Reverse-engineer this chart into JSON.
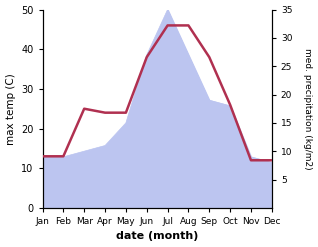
{
  "months": [
    "Jan",
    "Feb",
    "Mar",
    "Apr",
    "May",
    "Jun",
    "Jul",
    "Aug",
    "Sep",
    "Oct",
    "Nov",
    "Dec"
  ],
  "max_temp": [
    13,
    13,
    25,
    24,
    24,
    38,
    46,
    46,
    38,
    26,
    12,
    12
  ],
  "precipitation": [
    9,
    9,
    10,
    11,
    15,
    27,
    35,
    27,
    19,
    18,
    9,
    8
  ],
  "temp_color": "#b03050",
  "precip_fill_color": "#bcc5f0",
  "temp_ylim": [
    0,
    50
  ],
  "precip_ylim": [
    0,
    35
  ],
  "temp_yticks": [
    0,
    10,
    20,
    30,
    40,
    50
  ],
  "precip_yticks": [
    5,
    10,
    15,
    20,
    25,
    30,
    35
  ],
  "xlabel": "date (month)",
  "ylabel_left": "max temp (C)",
  "ylabel_right": "med. precipitation (kg/m2)"
}
